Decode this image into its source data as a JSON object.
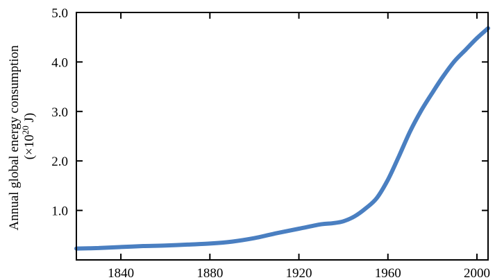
{
  "chart_data": {
    "type": "line",
    "title": "",
    "xlabel": "",
    "ylabel": {
      "line1": "Annual global energy consumption",
      "line2_prefix": "(×10",
      "line2_sup": "20",
      "line2_suffix": " J)"
    },
    "xlim": [
      1820,
      2005
    ],
    "ylim": [
      0,
      5.0
    ],
    "x_ticks": [
      1840,
      1880,
      1920,
      1960,
      2000
    ],
    "x_tick_labels": [
      "1840",
      "1880",
      "1920",
      "1960",
      "2000"
    ],
    "y_ticks": [
      1.0,
      2.0,
      3.0,
      4.0,
      5.0
    ],
    "y_tick_labels": [
      "1.0",
      "2.0",
      "3.0",
      "4.0",
      "5.0"
    ],
    "grid": false,
    "series": [
      {
        "color": "#4a7fc1",
        "x": [
          1820,
          1830,
          1840,
          1850,
          1860,
          1870,
          1880,
          1890,
          1900,
          1910,
          1920,
          1930,
          1935,
          1940,
          1945,
          1950,
          1955,
          1960,
          1965,
          1970,
          1975,
          1980,
          1985,
          1990,
          1995,
          2000,
          2005
        ],
        "y": [
          0.23,
          0.24,
          0.26,
          0.28,
          0.29,
          0.31,
          0.33,
          0.37,
          0.44,
          0.54,
          0.63,
          0.72,
          0.74,
          0.78,
          0.88,
          1.04,
          1.25,
          1.62,
          2.1,
          2.6,
          3.02,
          3.38,
          3.72,
          4.02,
          4.25,
          4.48,
          4.68
        ]
      }
    ]
  }
}
